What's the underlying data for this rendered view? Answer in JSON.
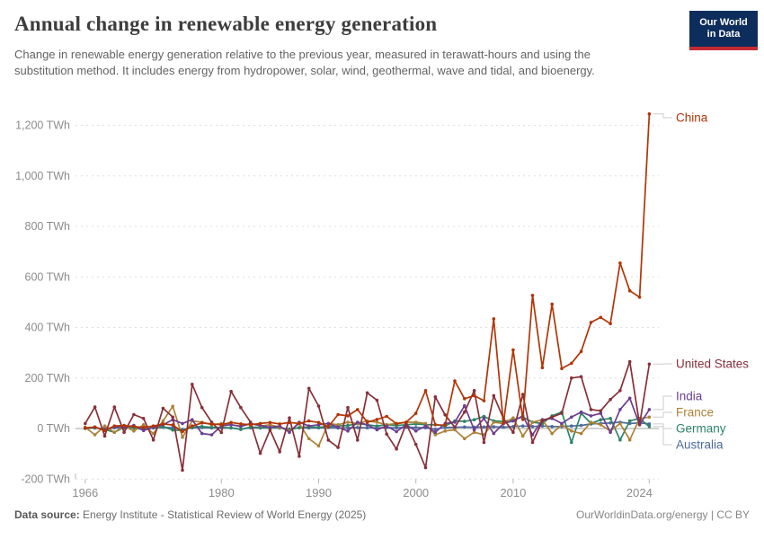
{
  "header": {
    "title": "Annual change in renewable energy generation",
    "subtitle": "Change in renewable energy generation relative to the previous year, measured in terawatt-hours and using the substitution method. It includes energy from hydropower, solar, wind, geothermal, wave and tidal, and bioenergy.",
    "logo": {
      "line1": "Our World",
      "line2": "in Data",
      "bg_color": "#0d2e5c",
      "bar_color": "#c52a33"
    }
  },
  "footer": {
    "source_label": "Data source:",
    "source_text": " Energy Institute - Statistical Review of World Energy (2025)",
    "right_text": "OurWorldinData.org/energy | CC BY"
  },
  "chart_data": {
    "type": "line",
    "title": "Annual change in renewable energy generation",
    "unit": "TWh",
    "xlim": [
      1965,
      2025.5
    ],
    "ylim": [
      -200,
      1260
    ],
    "grid": "dashed-horizontal",
    "legend_position": "right-entity-labels",
    "x_ticks": [
      1966,
      1980,
      1990,
      2000,
      2010,
      2024
    ],
    "y_ticks": [
      -200,
      0,
      200,
      400,
      600,
      800,
      1000,
      1200
    ],
    "y_tick_suffix": " TWh",
    "x": [
      1966,
      1967,
      1968,
      1969,
      1970,
      1971,
      1972,
      1973,
      1974,
      1975,
      1976,
      1977,
      1978,
      1979,
      1980,
      1981,
      1982,
      1983,
      1984,
      1985,
      1986,
      1987,
      1988,
      1989,
      1990,
      1991,
      1992,
      1993,
      1994,
      1995,
      1996,
      1997,
      1998,
      1999,
      2000,
      2001,
      2002,
      2003,
      2004,
      2005,
      2006,
      2007,
      2008,
      2009,
      2010,
      2011,
      2012,
      2013,
      2014,
      2015,
      2016,
      2017,
      2018,
      2019,
      2020,
      2021,
      2022,
      2023,
      2024
    ],
    "series": [
      {
        "name": "Australia",
        "color": "#4C6A9C",
        "values": [
          1,
          2,
          -2,
          3,
          2,
          4,
          -3,
          2,
          5,
          3,
          -4,
          3,
          4,
          2,
          3,
          2,
          -2,
          3,
          2,
          3,
          2,
          -2,
          3,
          2,
          3,
          4,
          2,
          3,
          4,
          3,
          3,
          4,
          3,
          5,
          4,
          3,
          -3,
          4,
          5,
          6,
          5,
          6,
          7,
          5,
          8,
          10,
          8,
          10,
          8,
          8,
          10,
          12,
          18,
          20,
          22,
          25,
          20,
          22,
          18
        ]
      },
      {
        "name": "Germany",
        "color": "#2C8465",
        "values": [
          0,
          3,
          -4,
          -15,
          5,
          3,
          -5,
          4,
          8,
          -6,
          -8,
          6,
          8,
          5,
          4,
          3,
          -4,
          6,
          4,
          5,
          3,
          -5,
          4,
          6,
          5,
          8,
          10,
          12,
          19,
          15,
          10,
          15,
          12,
          15,
          18,
          15,
          15,
          10,
          30,
          28,
          35,
          48,
          30,
          28,
          35,
          45,
          25,
          20,
          50,
          65,
          -55,
          60,
          20,
          35,
          40,
          -45,
          30,
          40,
          8
        ]
      },
      {
        "name": "France",
        "color": "#AD8136",
        "values": [
          5,
          -25,
          10,
          -15,
          10,
          -10,
          15,
          -20,
          30,
          88,
          -35,
          30,
          25,
          15,
          20,
          15,
          10,
          20,
          10,
          15,
          5,
          -10,
          20,
          -40,
          -69,
          20,
          15,
          25,
          20,
          30,
          25,
          15,
          20,
          25,
          25,
          20,
          -25,
          -10,
          -5,
          -40,
          -15,
          -25,
          25,
          20,
          42,
          -30,
          25,
          35,
          -20,
          15,
          -10,
          -20,
          25,
          15,
          -10,
          20,
          -45,
          40,
          45
        ]
      },
      {
        "name": "India",
        "color": "#6D3E91",
        "values": [
          2,
          5,
          -5,
          8,
          5,
          12,
          -8,
          5,
          15,
          35,
          20,
          35,
          -20,
          -25,
          10,
          15,
          8,
          20,
          12,
          5,
          10,
          -15,
          25,
          10,
          15,
          20,
          5,
          -10,
          25,
          15,
          -5,
          10,
          -12,
          15,
          -10,
          10,
          -15,
          20,
          25,
          90,
          -5,
          40,
          -20,
          20,
          30,
          50,
          -25,
          35,
          40,
          20,
          45,
          65,
          50,
          60,
          -15,
          75,
          120,
          15,
          75
        ]
      },
      {
        "name": "United States",
        "color": "#883039",
        "values": [
          20,
          85,
          -30,
          85,
          -15,
          55,
          40,
          -45,
          80,
          45,
          -165,
          175,
          83,
          25,
          -16,
          147,
          83,
          25,
          -98,
          -5,
          -92,
          42,
          -110,
          159,
          89,
          -46,
          -75,
          83,
          -46,
          141,
          112,
          -22,
          -81,
          19,
          -63,
          -155,
          125,
          54,
          5,
          65,
          150,
          -55,
          130,
          40,
          -15,
          135,
          -55,
          30,
          45,
          60,
          200,
          205,
          75,
          70,
          115,
          150,
          265,
          15,
          255
        ]
      },
      {
        "name": "China",
        "color": "#B13507",
        "values": [
          2,
          6,
          -8,
          10,
          12,
          8,
          4,
          10,
          18,
          14,
          -12,
          10,
          22,
          18,
          15,
          24,
          18,
          15,
          20,
          24,
          18,
          24,
          20,
          30,
          24,
          7,
          55,
          50,
          75,
          25,
          36,
          48,
          19,
          25,
          60,
          150,
          15,
          13,
          188,
          118,
          130,
          110,
          434,
          20,
          311,
          36,
          527,
          241,
          492,
          237,
          258,
          305,
          420,
          440,
          415,
          655,
          545,
          520,
          1245
        ]
      }
    ]
  }
}
